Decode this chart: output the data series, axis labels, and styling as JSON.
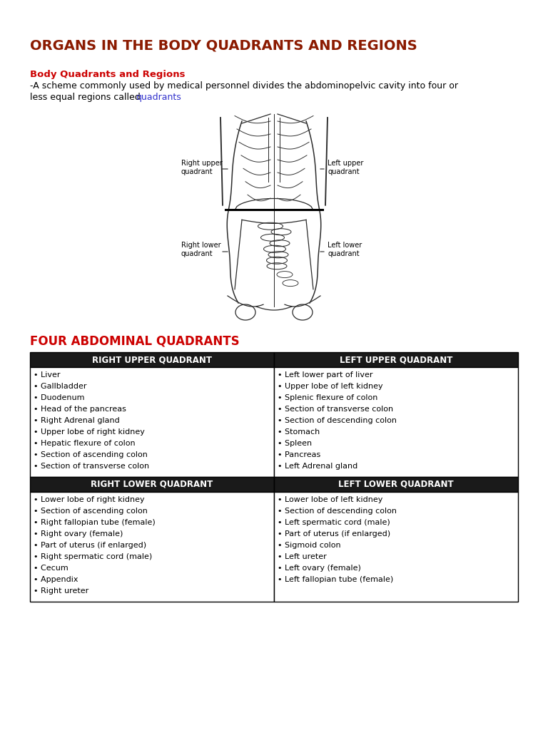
{
  "title": "ORGANS IN THE BODY QUADRANTS AND REGIONS",
  "title_color": "#8B1A00",
  "subtitle": "Body Quadrants and Regions",
  "subtitle_color": "#CC0000",
  "body_text_line1": "-A scheme commonly used by medical personnel divides the abdominopelvic cavity into four or",
  "body_text_line2": "less equal regions called ",
  "body_text_link": "quadrants",
  "link_color": "#3333CC",
  "section_heading": "FOUR ABDOMINAL QUADRANTS",
  "section_heading_color": "#CC0000",
  "bg_color": "#FFFFFF",
  "text_color": "#000000",
  "table_header_bg": "#1a1a1a",
  "table_header_text": "#FFFFFF",
  "table_border_color": "#000000",
  "headers": [
    "RIGHT UPPER QUADRANT",
    "LEFT UPPER QUADRANT",
    "RIGHT LOWER QUADRANT",
    "LEFT LOWER QUADRANT"
  ],
  "ruq_items": [
    "Liver",
    "Gallbladder",
    "Duodenum",
    "Head of the pancreas",
    "Right Adrenal gland",
    "Upper lobe of right kidney",
    "Hepatic flexure of colon",
    "Section of ascending colon",
    "Section of transverse colon"
  ],
  "luq_items": [
    "Left lower part of liver",
    "Upper lobe of left kidney",
    "Splenic flexure of colon",
    "Section of transverse colon",
    "Section of descending colon",
    "Stomach",
    "Spleen",
    "Pancreas",
    "Left Adrenal gland"
  ],
  "rlq_items": [
    "Lower lobe of right kidney",
    "Section of ascending colon",
    "Right fallopian tube (female)",
    "Right ovary (female)",
    "Part of uterus (if enlarged)",
    "Right spermatic cord (male)",
    "Cecum",
    "Appendix",
    "Right ureter"
  ],
  "llq_items": [
    "Lower lobe of left kidney",
    "Section of descending colon",
    "Left spermatic cord (male)",
    "Part of uterus (if enlarged)",
    "Sigmoid colon",
    "Left ureter",
    "Left ovary (female)",
    "Left fallopian tube (female)"
  ],
  "img_label_ruq": "Right upper\nquadrant",
  "img_label_luq": "Left upper\nquadrant",
  "img_label_rlq": "Right lower\nquadrant",
  "img_label_llq": "Left lower\nquadrant"
}
